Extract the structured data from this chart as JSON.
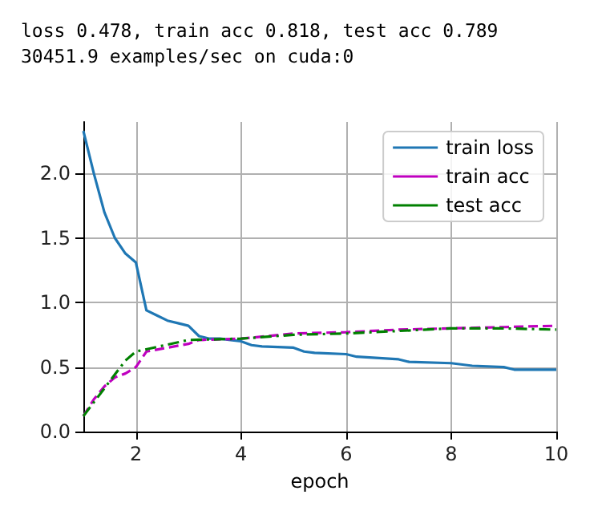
{
  "chart_data": {
    "type": "line",
    "title": "loss 0.478, train acc 0.818, test acc 0.789",
    "subtitle": "30451.9 examples/sec on cuda:0",
    "xlabel": "epoch",
    "xlim": [
      1,
      10
    ],
    "xticks": [
      2,
      4,
      6,
      8,
      10
    ],
    "ylim": [
      0,
      2.4
    ],
    "yticks": [
      {
        "value": 0,
        "label": "0.0"
      },
      {
        "value": 0.5,
        "label": "0.5"
      },
      {
        "value": 1,
        "label": "1.0"
      },
      {
        "value": 1.5,
        "label": "1.5"
      },
      {
        "value": 2,
        "label": "2.0"
      }
    ],
    "grid": true,
    "legend": "top right",
    "marker": "none",
    "series": [
      {
        "name": "train loss",
        "color": "#1f77b4",
        "line_style": "solid",
        "x": [
          1,
          1.2,
          1.4,
          1.6,
          1.8,
          2,
          2.2,
          2.4,
          2.6,
          2.8,
          3,
          3.2,
          3.4,
          3.6,
          3.8,
          4,
          4.2,
          4.4,
          5,
          5.2,
          5.4,
          6,
          6.2,
          7,
          7.2,
          8,
          8.4,
          9,
          9.2,
          9.6,
          10
        ],
        "values": [
          2.33,
          2.0,
          1.7,
          1.5,
          1.38,
          1.31,
          0.94,
          0.9,
          0.86,
          0.84,
          0.82,
          0.74,
          0.72,
          0.72,
          0.71,
          0.7,
          0.67,
          0.66,
          0.65,
          0.62,
          0.61,
          0.6,
          0.58,
          0.56,
          0.54,
          0.53,
          0.51,
          0.5,
          0.48,
          0.48,
          0.48
        ]
      },
      {
        "name": "train acc",
        "color": "#bf00bf",
        "line_style": "dashed",
        "x": [
          1,
          1.2,
          1.4,
          1.6,
          1.8,
          2,
          2.2,
          2.6,
          3,
          3.2,
          4,
          5,
          6,
          7,
          8,
          9,
          10
        ],
        "values": [
          0.12,
          0.25,
          0.35,
          0.42,
          0.45,
          0.5,
          0.62,
          0.65,
          0.68,
          0.71,
          0.72,
          0.76,
          0.77,
          0.79,
          0.8,
          0.81,
          0.82
        ]
      },
      {
        "name": "test acc",
        "color": "#008000",
        "line_style": "dashdot",
        "x": [
          1,
          1.8,
          2,
          3,
          4,
          5,
          6,
          7,
          8,
          9,
          10
        ],
        "values": [
          0.12,
          0.55,
          0.62,
          0.71,
          0.72,
          0.75,
          0.76,
          0.78,
          0.8,
          0.8,
          0.79
        ]
      }
    ]
  }
}
